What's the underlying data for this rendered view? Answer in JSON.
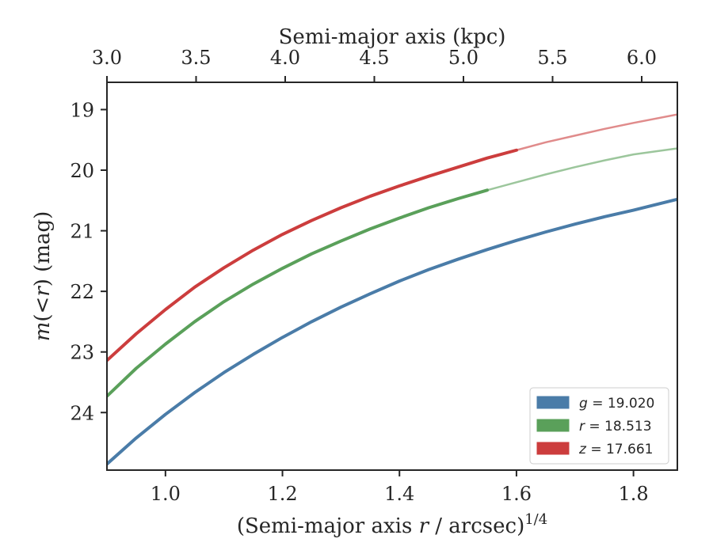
{
  "chart_data": {
    "type": "line",
    "xlabel_prefix": "(Semi-major axis ",
    "xlabel_var": "r",
    "xlabel_suffix": " / arcsec)",
    "xlabel_exp": "1/4",
    "ylabel_var": "m",
    "ylabel_mid": "(<",
    "ylabel_r": "r",
    "ylabel_suffix": ") (mag)",
    "top_xlabel": "Semi-major axis (kpc)",
    "xlim": [
      0.9,
      1.875
    ],
    "ylim": [
      24.95,
      18.55
    ],
    "y_inverted": true,
    "x_ticks": [
      1.0,
      1.2,
      1.4,
      1.6,
      1.8
    ],
    "x_tick_labels": [
      "1.0",
      "1.2",
      "1.4",
      "1.6",
      "1.8"
    ],
    "y_ticks": [
      19,
      20,
      21,
      22,
      23,
      24
    ],
    "y_tick_labels": [
      "19",
      "20",
      "21",
      "22",
      "23",
      "24"
    ],
    "top_ticks_kpc": [
      3.0,
      3.5,
      4.0,
      4.5,
      5.0,
      5.5,
      6.0
    ],
    "top_tick_labels": [
      "3.0",
      "3.5",
      "4.0",
      "4.5",
      "5.0",
      "5.5",
      "6.0"
    ],
    "top_xlim_kpc": [
      3.0,
      6.2
    ],
    "grid": false,
    "legend_position": "lower-right",
    "series": [
      {
        "name": "g",
        "legend_var": "g",
        "legend_value": " = 19.020",
        "color": "#4a7ca8",
        "x": [
          0.9,
          0.95,
          1.0,
          1.05,
          1.1,
          1.15,
          1.2,
          1.25,
          1.3,
          1.35,
          1.4,
          1.45,
          1.5,
          1.55,
          1.6,
          1.65,
          1.7,
          1.75,
          1.8,
          1.875
        ],
        "y": [
          24.85,
          24.42,
          24.03,
          23.67,
          23.34,
          23.04,
          22.76,
          22.5,
          22.26,
          22.04,
          21.83,
          21.64,
          21.47,
          21.31,
          21.16,
          21.02,
          20.89,
          20.77,
          20.66,
          20.48
        ],
        "x_solid_end": 1.875
      },
      {
        "name": "r",
        "legend_var": "r",
        "legend_value": " = 18.513",
        "color": "#5aa05a",
        "x": [
          0.9,
          0.95,
          1.0,
          1.05,
          1.1,
          1.15,
          1.2,
          1.25,
          1.3,
          1.35,
          1.4,
          1.45,
          1.5,
          1.55,
          1.6,
          1.65,
          1.7,
          1.75,
          1.8,
          1.875
        ],
        "y": [
          23.73,
          23.27,
          22.87,
          22.5,
          22.17,
          21.88,
          21.62,
          21.38,
          21.17,
          20.97,
          20.79,
          20.62,
          20.47,
          20.33,
          20.2,
          20.07,
          19.95,
          19.84,
          19.74,
          19.64
        ],
        "x_solid_end": 1.55
      },
      {
        "name": "z",
        "legend_var": "z",
        "legend_value": " = 17.661",
        "color": "#cc3d3d",
        "x": [
          0.9,
          0.95,
          1.0,
          1.05,
          1.1,
          1.15,
          1.2,
          1.25,
          1.3,
          1.35,
          1.4,
          1.45,
          1.5,
          1.55,
          1.6,
          1.65,
          1.7,
          1.75,
          1.8,
          1.875
        ],
        "y": [
          23.14,
          22.7,
          22.3,
          21.93,
          21.61,
          21.32,
          21.06,
          20.83,
          20.62,
          20.43,
          20.26,
          20.1,
          19.95,
          19.8,
          19.67,
          19.54,
          19.43,
          19.32,
          19.22,
          19.08
        ],
        "x_solid_end": 1.6
      }
    ]
  }
}
